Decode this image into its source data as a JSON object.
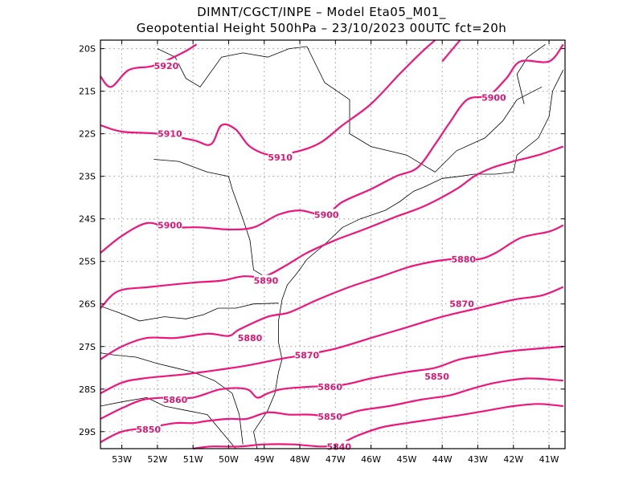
{
  "header": {
    "line1": "DIMNT/CGCT/INPE –  Model Eta05_M01_",
    "line2": "Geopotential Height 500hPa –  23/10/2023 00UTC fct=20h"
  },
  "colors": {
    "contour": "#f0157a",
    "label": "#e0156f",
    "coast": "#000000",
    "grid": "#999999"
  },
  "chart_data": {
    "type": "line",
    "title": "Geopotential Height 500hPa",
    "xlim": [
      -53.6,
      -40.55
    ],
    "ylim": [
      -29.4,
      -19.8
    ],
    "xticks": [
      -53,
      -52,
      -51,
      -50,
      -49,
      -48,
      -47,
      -46,
      -45,
      -44,
      -43,
      -42,
      -41
    ],
    "xtick_labels": [
      "53W",
      "52W",
      "51W",
      "50W",
      "49W",
      "48W",
      "47W",
      "46W",
      "45W",
      "44W",
      "43W",
      "42W",
      "41W"
    ],
    "yticks": [
      -20,
      -21,
      -22,
      -23,
      -24,
      -25,
      -26,
      -27,
      -28,
      -29
    ],
    "ytick_labels": [
      "20S",
      "21S",
      "22S",
      "23S",
      "24S",
      "25S",
      "26S",
      "27S",
      "28S",
      "29S"
    ],
    "grid": true,
    "series": [
      {
        "name": "5920",
        "points": [
          [
            -53.6,
            -20.65
          ],
          [
            -53.3,
            -20.9
          ],
          [
            -52.8,
            -20.5
          ],
          [
            -52.1,
            -20.4
          ],
          [
            -51.3,
            -20.1
          ],
          [
            -50.9,
            -19.9
          ]
        ]
      },
      {
        "name": "5920",
        "points": [
          [
            -44.0,
            -20.3
          ],
          [
            -43.7,
            -20.0
          ],
          [
            -43.5,
            -19.8
          ]
        ]
      },
      {
        "name": "5910",
        "points": [
          [
            -53.6,
            -21.8
          ],
          [
            -53.0,
            -21.95
          ],
          [
            -52.0,
            -22.0
          ],
          [
            -51.0,
            -22.15
          ],
          [
            -50.5,
            -22.25
          ],
          [
            -50.2,
            -21.8
          ],
          [
            -49.8,
            -21.9
          ],
          [
            -49.4,
            -22.3
          ],
          [
            -48.8,
            -22.5
          ],
          [
            -48.0,
            -22.4
          ],
          [
            -47.4,
            -22.2
          ],
          [
            -46.8,
            -21.8
          ],
          [
            -46.0,
            -21.3
          ],
          [
            -45.2,
            -20.6
          ],
          [
            -44.6,
            -20.1
          ],
          [
            -44.2,
            -19.8
          ]
        ]
      },
      {
        "name": "5900",
        "points": [
          [
            -53.6,
            -24.8
          ],
          [
            -53.0,
            -24.4
          ],
          [
            -52.3,
            -24.1
          ],
          [
            -51.7,
            -24.2
          ],
          [
            -50.8,
            -24.2
          ],
          [
            -50.0,
            -24.25
          ],
          [
            -49.3,
            -24.2
          ],
          [
            -48.6,
            -23.9
          ],
          [
            -48.0,
            -23.8
          ],
          [
            -47.3,
            -23.9
          ],
          [
            -46.8,
            -23.6
          ],
          [
            -46.0,
            -23.3
          ],
          [
            -45.3,
            -23.0
          ],
          [
            -44.7,
            -22.8
          ],
          [
            -44.2,
            -22.25
          ],
          [
            -43.8,
            -21.75
          ],
          [
            -43.3,
            -21.2
          ],
          [
            -42.7,
            -21.1
          ],
          [
            -42.2,
            -20.7
          ],
          [
            -41.8,
            -20.3
          ],
          [
            -41.0,
            -20.3
          ],
          [
            -40.6,
            -19.9
          ]
        ]
      },
      {
        "name": "5890",
        "points": [
          [
            -53.6,
            -26.1
          ],
          [
            -53.1,
            -25.7
          ],
          [
            -52.2,
            -25.6
          ],
          [
            -51.0,
            -25.5
          ],
          [
            -50.2,
            -25.45
          ],
          [
            -49.6,
            -25.35
          ],
          [
            -49.0,
            -25.35
          ],
          [
            -48.4,
            -25.1
          ],
          [
            -47.8,
            -24.8
          ],
          [
            -47.0,
            -24.5
          ],
          [
            -46.2,
            -24.25
          ],
          [
            -45.3,
            -23.95
          ],
          [
            -44.5,
            -23.7
          ],
          [
            -43.6,
            -23.3
          ],
          [
            -43.1,
            -23.0
          ],
          [
            -42.6,
            -22.8
          ],
          [
            -42.0,
            -22.65
          ],
          [
            -41.3,
            -22.5
          ],
          [
            -40.6,
            -22.3
          ]
        ]
      },
      {
        "name": "5880",
        "points": [
          [
            -53.6,
            -27.3
          ],
          [
            -53.0,
            -27.0
          ],
          [
            -52.3,
            -26.8
          ],
          [
            -51.5,
            -26.8
          ],
          [
            -50.6,
            -26.7
          ],
          [
            -50.0,
            -26.75
          ],
          [
            -49.7,
            -26.6
          ],
          [
            -48.9,
            -26.3
          ],
          [
            -48.3,
            -26.2
          ],
          [
            -47.5,
            -25.9
          ],
          [
            -46.6,
            -25.6
          ],
          [
            -45.7,
            -25.35
          ],
          [
            -44.8,
            -25.1
          ],
          [
            -43.8,
            -24.95
          ],
          [
            -43.0,
            -24.95
          ],
          [
            -42.5,
            -24.8
          ],
          [
            -41.8,
            -24.45
          ],
          [
            -41.0,
            -24.3
          ],
          [
            -40.6,
            -24.15
          ]
        ]
      },
      {
        "name": "5870",
        "points": [
          [
            -53.6,
            -28.1
          ],
          [
            -53.0,
            -27.85
          ],
          [
            -52.4,
            -27.75
          ],
          [
            -51.2,
            -27.65
          ],
          [
            -50.3,
            -27.55
          ],
          [
            -49.5,
            -27.45
          ],
          [
            -48.6,
            -27.3
          ],
          [
            -47.9,
            -27.2
          ],
          [
            -47.0,
            -27.05
          ],
          [
            -46.0,
            -26.8
          ],
          [
            -45.0,
            -26.55
          ],
          [
            -44.0,
            -26.3
          ],
          [
            -43.0,
            -26.1
          ],
          [
            -42.0,
            -25.9
          ],
          [
            -41.2,
            -25.8
          ],
          [
            -40.6,
            -25.6
          ]
        ]
      },
      {
        "name": "5860",
        "points": [
          [
            -53.6,
            -28.7
          ],
          [
            -53.0,
            -28.45
          ],
          [
            -52.4,
            -28.25
          ],
          [
            -51.7,
            -28.2
          ],
          [
            -51.0,
            -28.2
          ],
          [
            -50.2,
            -28.0
          ],
          [
            -49.5,
            -28.0
          ],
          [
            -49.2,
            -28.2
          ],
          [
            -48.9,
            -28.1
          ],
          [
            -48.5,
            -28.0
          ],
          [
            -47.8,
            -27.95
          ],
          [
            -46.8,
            -27.9
          ],
          [
            -46.0,
            -27.75
          ],
          [
            -45.0,
            -27.6
          ],
          [
            -44.2,
            -27.5
          ],
          [
            -43.5,
            -27.3
          ],
          [
            -42.8,
            -27.2
          ],
          [
            -42.0,
            -27.1
          ],
          [
            -40.6,
            -27.0
          ]
        ]
      },
      {
        "name": "5850",
        "points": [
          [
            -53.6,
            -29.25
          ],
          [
            -53.0,
            -29.0
          ],
          [
            -52.2,
            -28.9
          ],
          [
            -51.5,
            -28.8
          ],
          [
            -51.0,
            -28.8
          ],
          [
            -50.6,
            -28.75
          ],
          [
            -50.0,
            -28.7
          ],
          [
            -49.5,
            -28.7
          ],
          [
            -48.9,
            -28.55
          ],
          [
            -48.3,
            -28.6
          ],
          [
            -47.7,
            -28.6
          ],
          [
            -47.0,
            -28.65
          ],
          [
            -46.3,
            -28.5
          ],
          [
            -45.5,
            -28.4
          ],
          [
            -44.6,
            -28.25
          ],
          [
            -43.8,
            -28.15
          ],
          [
            -43.2,
            -28.0
          ],
          [
            -42.5,
            -27.85
          ],
          [
            -41.6,
            -27.75
          ],
          [
            -40.6,
            -27.8
          ]
        ]
      },
      {
        "name": "5840",
        "points": [
          [
            -51.0,
            -29.4
          ],
          [
            -50.5,
            -29.35
          ],
          [
            -49.7,
            -29.35
          ],
          [
            -49.0,
            -29.3
          ],
          [
            -48.2,
            -29.3
          ],
          [
            -47.4,
            -29.35
          ],
          [
            -46.9,
            -29.3
          ],
          [
            -46.4,
            -29.1
          ],
          [
            -45.7,
            -28.9
          ],
          [
            -45.0,
            -28.8
          ],
          [
            -44.2,
            -28.7
          ],
          [
            -43.4,
            -28.6
          ],
          [
            -42.7,
            -28.5
          ],
          [
            -42.0,
            -28.4
          ],
          [
            -41.3,
            -28.35
          ],
          [
            -40.6,
            -28.4
          ]
        ]
      }
    ],
    "contour_labels": [
      {
        "text": "5920",
        "x": -51.75,
        "y": -20.4
      },
      {
        "text": "5910",
        "x": -51.65,
        "y": -22.0
      },
      {
        "text": "5910",
        "x": -48.55,
        "y": -22.55
      },
      {
        "text": "5900",
        "x": -51.65,
        "y": -24.15
      },
      {
        "text": "5900",
        "x": -47.25,
        "y": -23.9
      },
      {
        "text": "5900",
        "x": -42.55,
        "y": -21.15
      },
      {
        "text": "5890",
        "x": -48.95,
        "y": -25.45
      },
      {
        "text": "5880",
        "x": -49.4,
        "y": -26.8
      },
      {
        "text": "5880",
        "x": -43.4,
        "y": -24.95
      },
      {
        "text": "5870",
        "x": -47.8,
        "y": -27.2
      },
      {
        "text": "5870",
        "x": -43.45,
        "y": -26.0
      },
      {
        "text": "5860",
        "x": -51.5,
        "y": -28.25
      },
      {
        "text": "5860",
        "x": -47.15,
        "y": -27.95
      },
      {
        "text": "5850",
        "x": -44.15,
        "y": -27.7
      },
      {
        "text": "5850",
        "x": -52.25,
        "y": -28.95
      },
      {
        "text": "5850",
        "x": -47.15,
        "y": -28.65
      },
      {
        "text": "5840",
        "x": -46.9,
        "y": -29.35
      }
    ]
  }
}
